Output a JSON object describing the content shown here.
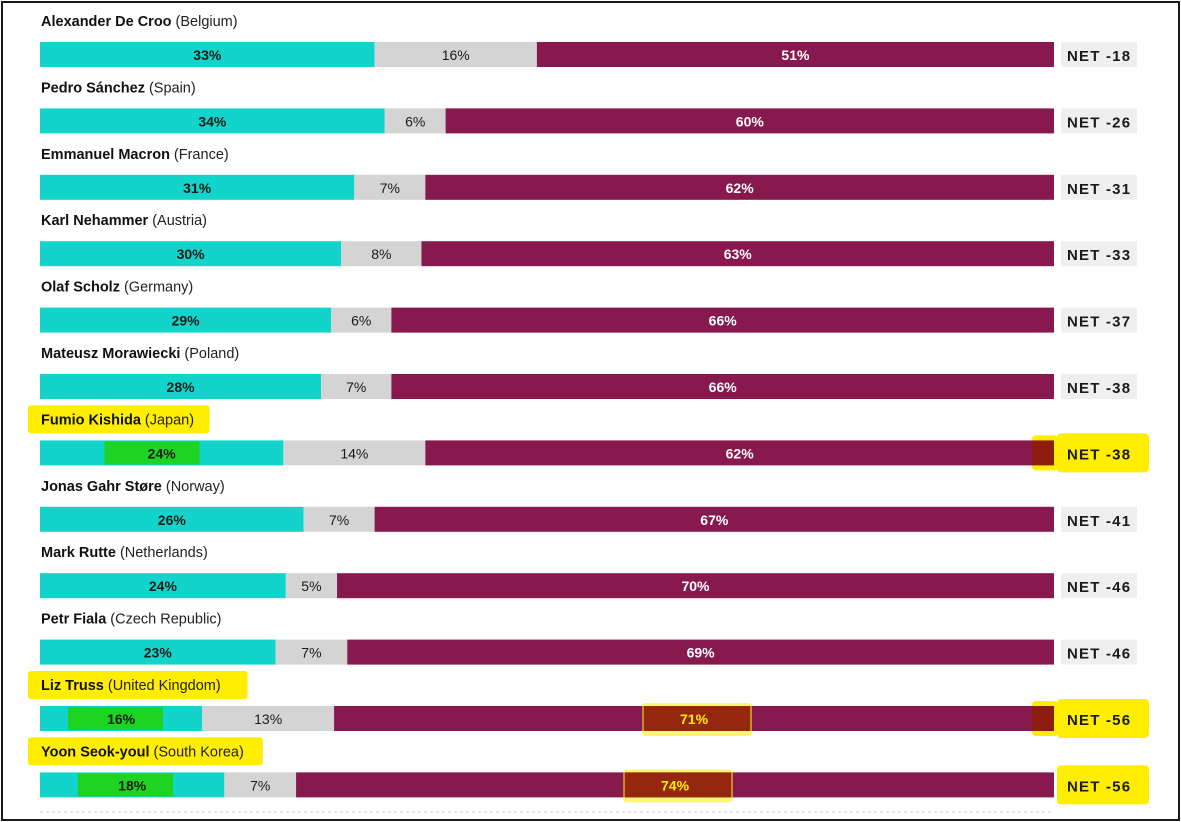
{
  "chart_data": {
    "type": "bar",
    "orientation": "horizontal",
    "stacked": true,
    "normalized_to": 100,
    "series": [
      {
        "name": "",
        "color": "#12d4cb"
      },
      {
        "name": "",
        "color": "#d4d4d4"
      },
      {
        "name": "",
        "color": "#87194e"
      }
    ],
    "rows": [
      {
        "leader": "Alexander De Croo",
        "country": "(Belgium)",
        "values": [
          33,
          16,
          51
        ],
        "labels": [
          "33%",
          "16%",
          "51%"
        ],
        "net": "NET -18",
        "highlight": false
      },
      {
        "leader": "Pedro Sánchez",
        "country": "(Spain)",
        "values": [
          34,
          6,
          60
        ],
        "labels": [
          "34%",
          "6%",
          "60%"
        ],
        "net": "NET -26",
        "highlight": false
      },
      {
        "leader": "Emmanuel Macron",
        "country": "(France)",
        "values": [
          31,
          7,
          62
        ],
        "labels": [
          "31%",
          "7%",
          "62%"
        ],
        "net": "NET -31",
        "highlight": false
      },
      {
        "leader": "Karl Nehammer",
        "country": "(Austria)",
        "values": [
          30,
          8,
          63
        ],
        "labels": [
          "30%",
          "8%",
          "63%"
        ],
        "net": "NET -33",
        "highlight": false
      },
      {
        "leader": "Olaf Scholz",
        "country": "(Germany)",
        "values": [
          29,
          6,
          66
        ],
        "labels": [
          "29%",
          "6%",
          "66%"
        ],
        "net": "NET -37",
        "highlight": false
      },
      {
        "leader": "Mateusz Morawiecki",
        "country": "(Poland)",
        "values": [
          28,
          7,
          66
        ],
        "labels": [
          "28%",
          "7%",
          "66%"
        ],
        "net": "NET -38",
        "highlight": false
      },
      {
        "leader": "Fumio Kishida",
        "country": "(Japan)",
        "values": [
          24,
          14,
          62
        ],
        "labels": [
          "24%",
          "14%",
          "62%"
        ],
        "net": "NET -38",
        "highlight": true,
        "highlight_dislike_label": false
      },
      {
        "leader": "Jonas Gahr Støre",
        "country": "(Norway)",
        "values": [
          26,
          7,
          67
        ],
        "labels": [
          "26%",
          "7%",
          "67%"
        ],
        "net": "NET -41",
        "highlight": false
      },
      {
        "leader": "Mark Rutte",
        "country": "(Netherlands)",
        "values": [
          24,
          5,
          70
        ],
        "labels": [
          "24%",
          "5%",
          "70%"
        ],
        "net": "NET -46",
        "highlight": false
      },
      {
        "leader": "Petr Fiala",
        "country": "(Czech Republic)",
        "values": [
          23,
          7,
          69
        ],
        "labels": [
          "23%",
          "7%",
          "69%"
        ],
        "net": "NET -46",
        "highlight": false
      },
      {
        "leader": "Liz Truss",
        "country": "(United Kingdom)",
        "values": [
          16,
          13,
          71
        ],
        "labels": [
          "16%",
          "13%",
          "71%"
        ],
        "net": "NET -56",
        "highlight": true,
        "highlight_dislike_label": true
      },
      {
        "leader": "Yoon Seok-youl",
        "country": "(South Korea)",
        "values": [
          18,
          7,
          74
        ],
        "labels": [
          "18%",
          "7%",
          "74%"
        ],
        "net": "NET -56",
        "highlight": true,
        "highlight_dislike_label": true
      }
    ],
    "colors": {
      "highlighter_yellow": "#ffee00",
      "highlighter_green": "#1ed40e",
      "highlighter_dark_red": "#8e1c0c",
      "net_box": "#efefef"
    }
  }
}
